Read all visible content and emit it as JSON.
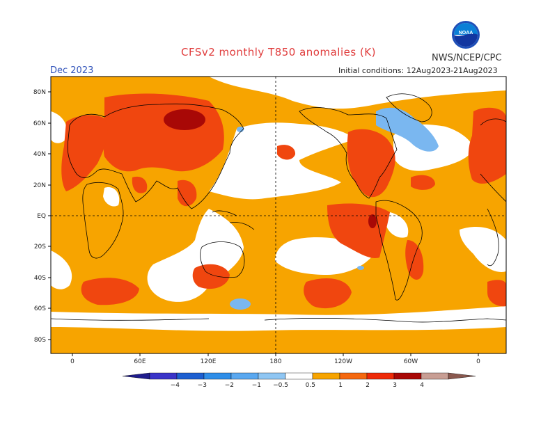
{
  "title": "CFSv2 monthly T850 anomalies (K)",
  "agency": "NWS/NCEP/CPC",
  "logo_text": "NOAA",
  "period": "Dec 2023",
  "initial_conditions": "Initial conditions: 12Aug2023-21Aug2023",
  "lat_labels": [
    "80N",
    "60N",
    "40N",
    "20N",
    "EQ",
    "20S",
    "40S",
    "60S",
    "80S"
  ],
  "lon_labels": [
    "0",
    "60E",
    "120E",
    "180",
    "120W",
    "60W",
    "0"
  ],
  "colorbar": {
    "colors": [
      "#1f1c8c",
      "#3a34c8",
      "#1d5fd0",
      "#2f8ee8",
      "#5aa8f0",
      "#8fc6f3",
      "#ffffff",
      "#f7a400",
      "#f5680f",
      "#ee2a08",
      "#a80806",
      "#c89e94",
      "#8a584e"
    ],
    "labels": [
      "−4",
      "−3",
      "−2",
      "−1",
      "−0.5",
      "0.5",
      "1",
      "2",
      "3",
      "4"
    ]
  },
  "colors": {
    "orange": "#f7a400",
    "red": "#f0460f",
    "darkred": "#a80806",
    "blue": "#7ab7f0"
  }
}
